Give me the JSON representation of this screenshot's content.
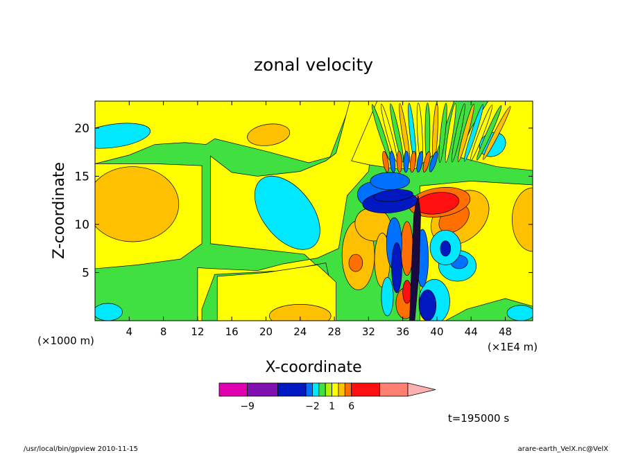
{
  "chart_data": {
    "type": "heatmap",
    "title": "zonal velocity",
    "xlabel": "X-coordinate",
    "ylabel": "Z-coordinate",
    "x_unit_left": "(×1000 m)",
    "x_unit_right": "(×1E4 m)",
    "xlim": [
      0,
      51.2
    ],
    "ylim": [
      0,
      22.8
    ],
    "x_ticks": [
      4,
      8,
      12,
      16,
      20,
      24,
      28,
      32,
      36,
      40,
      44,
      48
    ],
    "y_ticks": [
      5,
      10,
      15,
      20
    ],
    "colorbar": {
      "bounds": [
        -20,
        -9,
        -6,
        -3,
        -2,
        -1,
        0,
        1,
        2,
        3,
        6,
        9,
        20
      ],
      "colors": [
        "#e000b0",
        "#8010b0",
        "#0018c0",
        "#0070ff",
        "#00e8ff",
        "#40e040",
        "#b0f000",
        "#ffff00",
        "#ffc000",
        "#ff7000",
        "#ff1010",
        "#ff8070"
      ],
      "extend_color": "#ffb0b0",
      "labels": [
        "-9",
        "-2",
        "1",
        "6"
      ]
    },
    "grid": false
  },
  "annotations": {
    "time": "t=195000 s",
    "footer_left": "/usr/local/bin/gpview  2010-11-15",
    "footer_right": "arare-earth_VelX.nc@VelX"
  }
}
